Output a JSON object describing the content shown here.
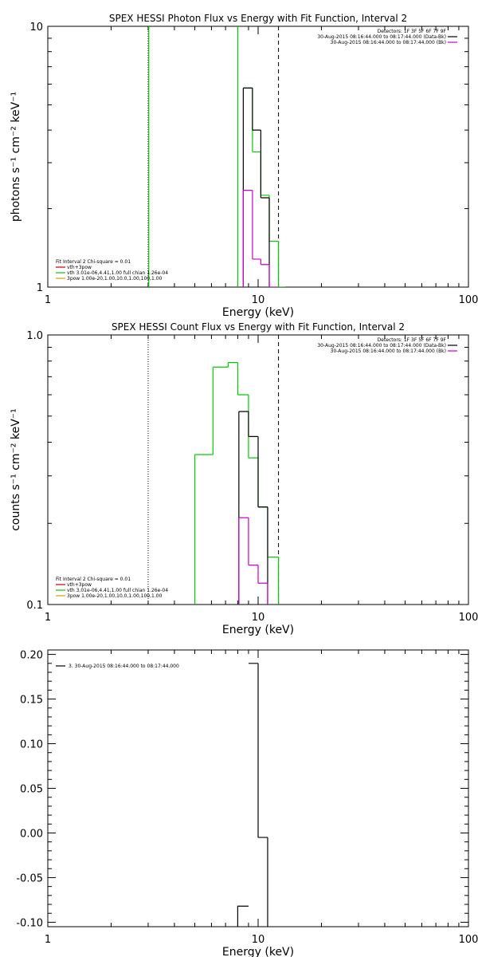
{
  "chart_data": [
    {
      "type": "line",
      "title": "SPEX HESSI Photon Flux vs Energy with Fit Function, Interval 2",
      "xlabel": "Energy (keV)",
      "ylabel": "photons s⁻¹ cm⁻² keV⁻¹",
      "xscale": "log",
      "yscale": "log",
      "xlim": [
        1,
        100
      ],
      "ylim": [
        1,
        10
      ],
      "xticks": [
        {
          "v": 1,
          "label": "1"
        },
        {
          "v": 10,
          "label": "10"
        },
        {
          "v": 100,
          "label": "100"
        }
      ],
      "yticks": [
        {
          "v": 1,
          "label": "1"
        },
        {
          "v": 10,
          "label": "10"
        }
      ],
      "vlines": [
        {
          "x": 3.0,
          "style": "dotted",
          "color": "#000000"
        },
        {
          "x": 12.5,
          "style": "dashed",
          "color": "#000000"
        }
      ],
      "legend_top": [
        {
          "text": "Detectors: 1F 3F 5F 6F 7F 9F",
          "color": "",
          "marker": false
        },
        {
          "text": "30-Aug-2015 08:16:44.000 to 08:17:44.000 (Data-Bk)",
          "color": "#000000",
          "marker": true
        },
        {
          "text": "30-Aug-2015 08:16:44.000 to 08:17:44.000 (Bk)",
          "color": "#cc00cc",
          "marker": true
        }
      ],
      "legend_bottom": [
        {
          "text": "Fit Interval 2   Chi-square = 0.01",
          "color": "",
          "marker": false
        },
        {
          "text": "vth+3pow",
          "color": "#cc0000",
          "marker": true
        },
        {
          "text": "vth 3.01e-06,4.41,1.00  full chian 1.26e-04",
          "color": "#00cc00",
          "marker": true
        },
        {
          "text": "3pow 1.00e-20,1.00,10.0,1.00,100,1.00",
          "color": "#e0a000",
          "marker": true
        }
      ],
      "series": [
        {
          "color": "#00cc00",
          "steps": [
            [
              3.02,
              3.05,
              0.9,
              10.2
            ],
            [
              8.0,
              8.5,
              0.9,
              10.2
            ],
            [
              8.5,
              9.4,
              5.8,
              5.8
            ],
            [
              9.4,
              10.3,
              3.3,
              3.3
            ],
            [
              10.3,
              11.3,
              2.25,
              2.25
            ],
            [
              11.3,
              12.5,
              1.5,
              1.5
            ],
            [
              12.5,
              13.5,
              1.0,
              1.0
            ]
          ]
        },
        {
          "color": "#000000",
          "steps": [
            [
              8.5,
              9.4,
              5.8,
              5.8
            ],
            [
              9.4,
              10.3,
              4.0,
              4.0
            ],
            [
              10.3,
              11.3,
              2.2,
              2.2
            ],
            [
              11.3,
              12.5,
              0.9,
              0.9
            ]
          ]
        },
        {
          "color": "#cc00cc",
          "steps": [
            [
              8.5,
              9.4,
              2.35,
              2.35
            ],
            [
              9.4,
              10.3,
              1.28,
              1.28
            ],
            [
              10.3,
              11.3,
              1.22,
              1.22
            ],
            [
              11.3,
              12.5,
              1.0,
              1.0
            ]
          ]
        }
      ]
    },
    {
      "type": "line",
      "title": "SPEX HESSI Count Flux vs Energy with Fit Function, Interval 2",
      "xlabel": "Energy (keV)",
      "ylabel": "counts s⁻¹ cm⁻² keV⁻¹",
      "xscale": "log",
      "yscale": "log",
      "xlim": [
        1,
        100
      ],
      "ylim": [
        0.1,
        1.0
      ],
      "xticks": [
        {
          "v": 1,
          "label": "1"
        },
        {
          "v": 10,
          "label": "10"
        },
        {
          "v": 100,
          "label": "100"
        }
      ],
      "yticks": [
        {
          "v": 0.1,
          "label": "0.1"
        },
        {
          "v": 1.0,
          "label": "1.0"
        }
      ],
      "vlines": [
        {
          "x": 3.0,
          "style": "dotted",
          "color": "#000000"
        },
        {
          "x": 12.5,
          "style": "dashed",
          "color": "#000000"
        }
      ],
      "legend_top": [
        {
          "text": "Detectors: 1F 3F 5F 6F 7F 9F",
          "color": "",
          "marker": false
        },
        {
          "text": "30-Aug-2015 08:16:44.000 to 08:17:44.000 (Data-Bk)",
          "color": "#000000",
          "marker": true
        },
        {
          "text": "30-Aug-2015 08:16:44.000 to 08:17:44.000 (Bk)",
          "color": "#cc00cc",
          "marker": true
        }
      ],
      "legend_bottom": [
        {
          "text": "Fit Interval 2   Chi-square = 0.01",
          "color": "",
          "marker": false
        },
        {
          "text": "vth+3pow",
          "color": "#cc0000",
          "marker": true
        },
        {
          "text": "vth 3.01e-06,4.41,1.00  full chian 1.26e-04",
          "color": "#00cc00",
          "marker": true
        },
        {
          "text": "3pow 1.00e-20,1.00,10.0,1.00,100,1.00",
          "color": "#e0a000",
          "marker": true
        }
      ],
      "series": [
        {
          "color": "#00cc00",
          "steps": [
            [
              4.1,
              5.0,
              0.09,
              0.09
            ],
            [
              5.0,
              6.1,
              0.36,
              0.36
            ],
            [
              6.1,
              7.2,
              0.76,
              0.76
            ],
            [
              7.2,
              8.0,
              0.79,
              0.79
            ],
            [
              8.0,
              9.0,
              0.6,
              0.6
            ],
            [
              9.0,
              10.0,
              0.35,
              0.35
            ],
            [
              10.0,
              11.1,
              0.23,
              0.23
            ],
            [
              11.1,
              12.5,
              0.15,
              0.15
            ],
            [
              12.5,
              13.6,
              0.09,
              0.09
            ]
          ]
        },
        {
          "color": "#000000",
          "steps": [
            [
              8.1,
              9.0,
              0.52,
              0.52
            ],
            [
              9.0,
              10.0,
              0.42,
              0.42
            ],
            [
              10.0,
              11.1,
              0.23,
              0.23
            ],
            [
              11.1,
              12.5,
              0.09,
              0.09
            ]
          ]
        },
        {
          "color": "#cc00cc",
          "steps": [
            [
              8.1,
              9.0,
              0.21,
              0.21
            ],
            [
              9.0,
              10.0,
              0.14,
              0.14
            ],
            [
              10.0,
              11.1,
              0.12,
              0.12
            ],
            [
              11.1,
              12.5,
              0.09,
              0.09
            ]
          ]
        }
      ]
    },
    {
      "type": "line",
      "title": "",
      "xlabel": "Energy (keV)",
      "ylabel": "",
      "xscale": "log",
      "yscale": "linear",
      "xlim": [
        1,
        100
      ],
      "ylim": [
        -0.105,
        0.205
      ],
      "xticks": [
        {
          "v": 1,
          "label": "1"
        },
        {
          "v": 10,
          "label": "10"
        },
        {
          "v": 100,
          "label": "100"
        }
      ],
      "yticks": [
        {
          "v": 0.2,
          "label": "0.20"
        },
        {
          "v": 0.15,
          "label": "0.15"
        },
        {
          "v": 0.1,
          "label": "0.10"
        },
        {
          "v": 0.05,
          "label": "0.05"
        },
        {
          "v": 0.0,
          "label": "0.00"
        },
        {
          "v": -0.05,
          "label": "-0.05"
        },
        {
          "v": -0.1,
          "label": "-0.10"
        }
      ],
      "vlines": [],
      "legend_top": [],
      "legend_bottom": [],
      "legend_left": [
        {
          "text": "3. 30-Aug-2015 08:16:44.000 to 08:17:44.000",
          "color": "#000000",
          "marker": true
        }
      ],
      "series": [
        {
          "color": "#000000",
          "steps": [
            [
              8.0,
              9.0,
              -0.11,
              -0.082
            ],
            [
              9.0,
              10.0,
              0.19,
              0.19
            ],
            [
              10.0,
              11.1,
              -0.005,
              -0.005
            ],
            [
              11.1,
              11.1,
              -0.11,
              -0.005
            ]
          ]
        }
      ]
    }
  ]
}
